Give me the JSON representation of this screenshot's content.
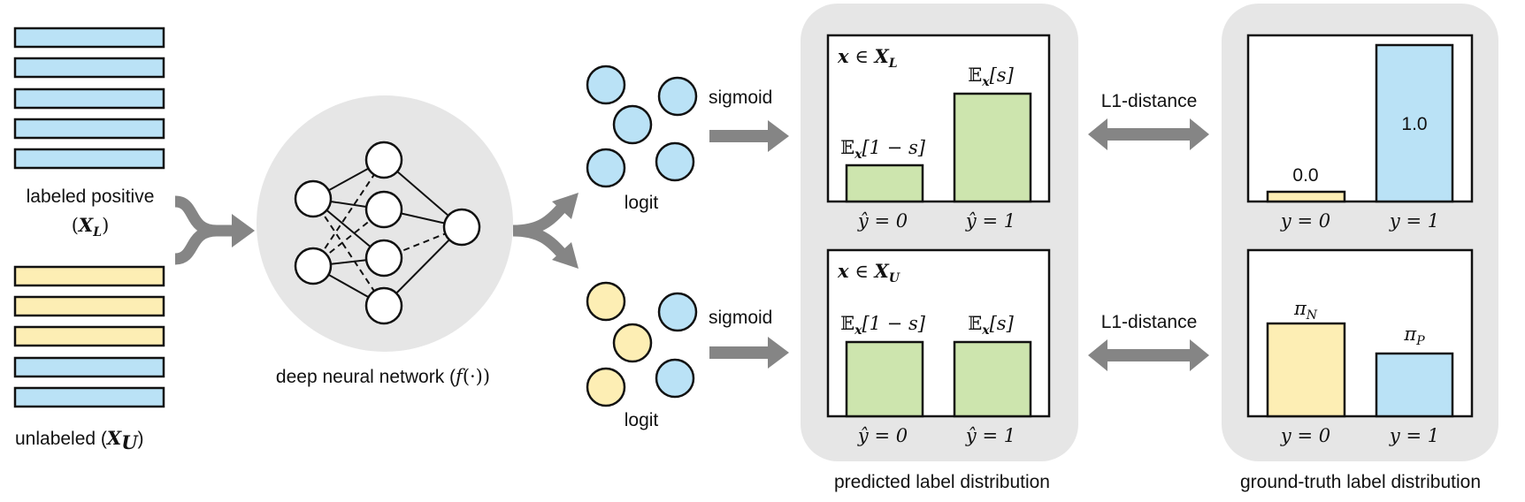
{
  "colors": {
    "labeled_blue": "#bae2f6",
    "unlabeled_yellow": "#fdeeb4",
    "predicted_green": "#cde5ae",
    "panel_grey": "#e6e6e6",
    "arrow_grey": "#858585"
  },
  "inputs": {
    "labeled_label": "labeled positive",
    "labeled_set": {
      "open": "(",
      "sym": "X",
      "sub": "L",
      "close": ")"
    },
    "labeled_rows": [
      "blue",
      "blue",
      "blue",
      "blue",
      "blue"
    ],
    "unlabeled_label": "unlabeled (",
    "unlabeled_set": {
      "sym": "X",
      "sub": "U",
      "close": ")"
    },
    "unlabeled_rows": [
      "yellow",
      "yellow",
      "yellow",
      "blue",
      "blue"
    ]
  },
  "network": {
    "label": "deep neural network (",
    "func": "f",
    "arg": "(·))"
  },
  "logits": {
    "top": {
      "label": "logit",
      "circles": [
        "blue",
        "blue",
        "blue",
        "blue",
        "blue"
      ],
      "op": "sigmoid"
    },
    "bottom": {
      "label": "logit",
      "circles": [
        "yellow",
        "blue",
        "yellow",
        "yellow",
        "blue"
      ],
      "op": "sigmoid"
    }
  },
  "predicted": {
    "title": "predicted label distribution",
    "top": {
      "cond": {
        "var": "x",
        "in": " ∈ ",
        "set": "X",
        "sub": "L"
      },
      "bar_labels": [
        {
          "E": "𝔼",
          "sub": "x",
          "rest": "[1 − s]"
        },
        {
          "E": "𝔼",
          "sub": "x",
          "rest": "[s]"
        }
      ],
      "x_labels": [
        "ŷ = 0",
        "ŷ = 1"
      ]
    },
    "bottom": {
      "cond": {
        "var": "x",
        "in": " ∈ ",
        "set": "X",
        "sub": "U"
      },
      "bar_labels": [
        {
          "E": "𝔼",
          "sub": "x",
          "rest": "[1 − s]"
        },
        {
          "E": "𝔼",
          "sub": "x",
          "rest": "[s]"
        }
      ],
      "x_labels": [
        "ŷ = 0",
        "ŷ = 1"
      ]
    }
  },
  "distance": {
    "top": "L1-distance",
    "bottom": "L1-distance"
  },
  "ground_truth": {
    "title": "ground-truth label distribution",
    "top": {
      "bar_labels": [
        "0.0",
        "1.0"
      ],
      "values": [
        0.0,
        1.0
      ],
      "x_labels": [
        "y = 0",
        "y = 1"
      ]
    },
    "bottom": {
      "bar_labels": [
        {
          "sym": "π",
          "sub": "N"
        },
        {
          "sym": "π",
          "sub": "P"
        }
      ],
      "x_labels": [
        "y = 0",
        "y = 1"
      ]
    }
  }
}
